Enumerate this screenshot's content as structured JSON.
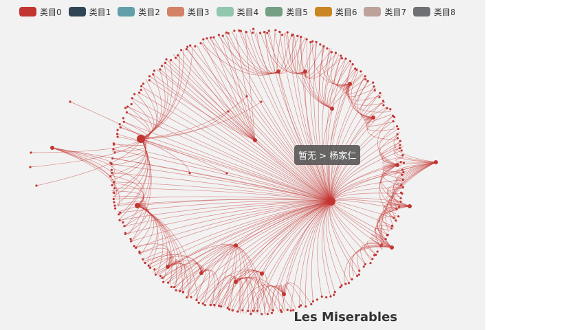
{
  "chart_data": {
    "type": "graph",
    "layout": "circular",
    "title": "Les Miserables",
    "categories": [
      {
        "name": "类目0",
        "color": "#c23531"
      },
      {
        "name": "类目1",
        "color": "#2f4554"
      },
      {
        "name": "类目2",
        "color": "#61a0a8"
      },
      {
        "name": "类目3",
        "color": "#d48265"
      },
      {
        "name": "类目4",
        "color": "#91c7ae"
      },
      {
        "name": "类目5",
        "color": "#749f83"
      },
      {
        "name": "类目6",
        "color": "#ca8622"
      },
      {
        "name": "类目7",
        "color": "#bda29a"
      },
      {
        "name": "类目8",
        "color": "#6e7074"
      }
    ],
    "node_color": "#c23531",
    "tooltip": {
      "source": "暂无",
      "arrow": ">",
      "target": "杨家仁"
    }
  }
}
